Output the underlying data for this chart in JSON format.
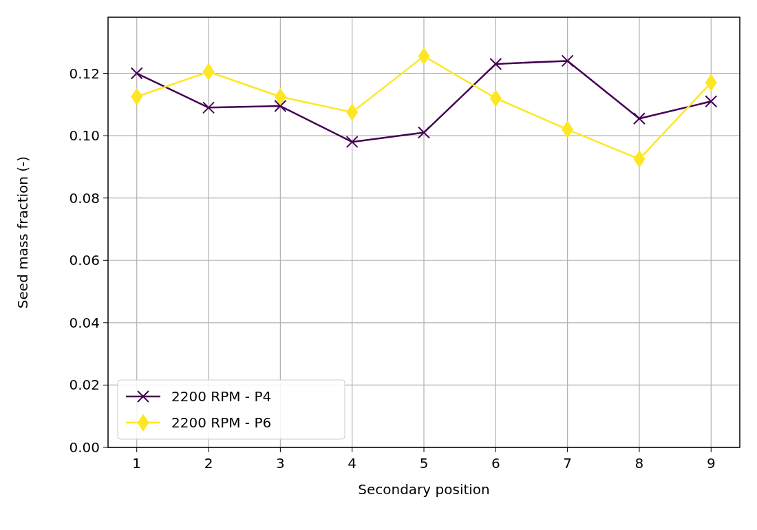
{
  "chart_data": {
    "type": "line",
    "xlabel": "Secondary position",
    "ylabel": "Seed mass fraction (-)",
    "x": [
      1,
      2,
      3,
      4,
      5,
      6,
      7,
      8,
      9
    ],
    "xlim": [
      0.6,
      9.4
    ],
    "xticks": [
      1,
      2,
      3,
      4,
      5,
      6,
      7,
      8,
      9
    ],
    "ylim": [
      0,
      0.138
    ],
    "yticks": [
      {
        "value": 0,
        "label": "0.00"
      },
      {
        "value": 0.02,
        "label": "0.02"
      },
      {
        "value": 0.04,
        "label": "0.04"
      },
      {
        "value": 0.06,
        "label": "0.06"
      },
      {
        "value": 0.08,
        "label": "0.08"
      },
      {
        "value": 0.1,
        "label": "0.10"
      },
      {
        "value": 0.12,
        "label": "0.12"
      }
    ],
    "grid": true,
    "legend": "bottom left",
    "series": [
      {
        "name": "2200 RPM - P4",
        "color": "#440154",
        "marker": "cross",
        "values": [
          0.12,
          0.109,
          0.1095,
          0.098,
          0.101,
          0.123,
          0.124,
          0.1055,
          0.111
        ]
      },
      {
        "name": "2200 RPM - P6",
        "color": "#fde725",
        "marker": "diamond",
        "values": [
          0.1125,
          0.1205,
          0.1125,
          0.1075,
          0.1255,
          0.112,
          0.102,
          0.0925,
          0.117
        ]
      }
    ]
  }
}
